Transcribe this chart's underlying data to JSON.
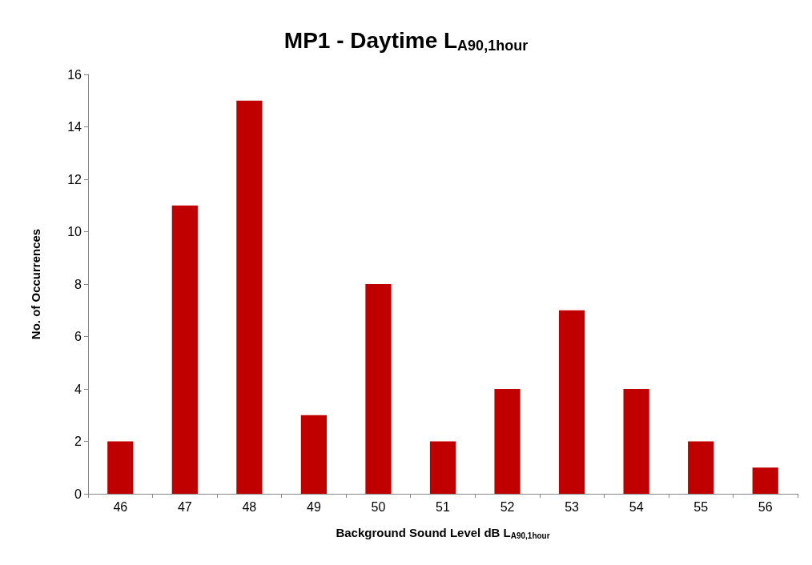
{
  "chart_data": {
    "type": "bar",
    "title": "MP1 - Daytime L$_{A90,1hour}$",
    "xlabel": "Background Sound Level dB L$_{A90,1hour}$",
    "ylabel": "No. of Occurrences",
    "categories": [
      "46",
      "47",
      "48",
      "49",
      "50",
      "51",
      "52",
      "53",
      "54",
      "55",
      "56"
    ],
    "values": [
      2,
      11,
      15,
      3,
      8,
      2,
      4,
      7,
      4,
      2,
      1
    ],
    "color": "#c00000",
    "ylim": [
      0,
      16
    ],
    "yticks": [
      0,
      2,
      4,
      6,
      8,
      10,
      12,
      14,
      16
    ],
    "grid": false
  }
}
